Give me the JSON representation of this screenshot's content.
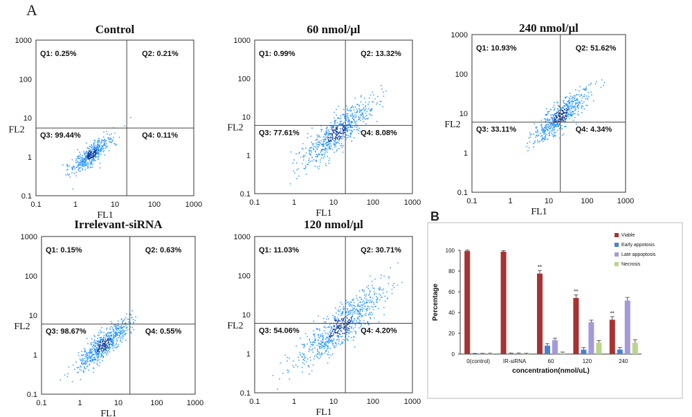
{
  "panel_a_label": "A",
  "panel_b_label": "B",
  "colors": {
    "dot": "#1e90ff",
    "dot_dense": "#0a3d9e",
    "quadrant_line": "#444444",
    "viable": "#a83232",
    "early": "#4a7fd6",
    "late": "#a49ad8",
    "necrosis": "#b8d68a"
  },
  "chart_data": [
    {
      "type": "scatter",
      "title": "Control",
      "xlabel": "FL1",
      "ylabel": "FL2",
      "x_scale": "log",
      "y_scale": "log",
      "xlim": [
        0.1,
        1000
      ],
      "ylim": [
        0.1,
        1000
      ],
      "x_ticks": [
        "0.1",
        "1",
        "10",
        "100",
        "1000"
      ],
      "y_ticks": [
        "0.1",
        "1",
        "10",
        "100",
        "1000"
      ],
      "gate": {
        "x": 20,
        "y": 5.5
      },
      "quadrants": [
        "Q1: 0.25%",
        "Q2: 0.21%",
        "Q3: 99.44%",
        "Q4: 0.11%"
      ],
      "cluster": {
        "center": [
          2.5,
          1.2
        ],
        "spread": 0.22,
        "count": 460
      }
    },
    {
      "type": "scatter",
      "title": "60 nmol/μl",
      "xlabel": "FL1",
      "ylabel": "FL2",
      "x_scale": "log",
      "y_scale": "log",
      "xlim": [
        0.1,
        1000
      ],
      "ylim": [
        0.1,
        1000
      ],
      "x_ticks": [
        "0.1",
        "1",
        "10",
        "100",
        "1000"
      ],
      "y_ticks": [
        "0.1",
        "1",
        "10",
        "100",
        "1000"
      ],
      "gate": {
        "x": 20,
        "y": 6
      },
      "quadrants": [
        "Q1: 0.99%",
        "Q2: 13.32%",
        "Q3: 77.61%",
        "Q4: 8.08%"
      ],
      "cluster": {
        "center": [
          12,
          4
        ],
        "spread": 0.38,
        "count": 620
      }
    },
    {
      "type": "scatter",
      "title": "240 nmol/μl",
      "xlabel": "FL1",
      "ylabel": "FL2",
      "x_scale": "log",
      "y_scale": "log",
      "xlim": [
        0.1,
        1000
      ],
      "ylim": [
        0.1,
        1000
      ],
      "x_ticks": [
        "0.1",
        "1",
        "10",
        "100",
        "1000"
      ],
      "y_ticks": [
        "0.1",
        "1",
        "10",
        "100",
        "1000"
      ],
      "gate": {
        "x": 20,
        "y": 6
      },
      "quadrants": [
        "Q1: 10.93%",
        "Q2: 51.62%",
        "Q3: 33.11%",
        "Q4: 4.34%"
      ],
      "cluster": {
        "center": [
          20,
          9
        ],
        "spread": 0.3,
        "count": 560
      }
    },
    {
      "type": "scatter",
      "title": "Irrelevant-siRNA",
      "xlabel": "FL1",
      "ylabel": "FL2",
      "x_scale": "log",
      "y_scale": "log",
      "xlim": [
        0.1,
        1000
      ],
      "ylim": [
        0.1,
        1000
      ],
      "x_ticks": [
        "0.1",
        "1",
        "10",
        "100",
        "1000"
      ],
      "y_ticks": [
        "0.1",
        "1",
        "10",
        "100",
        "1000"
      ],
      "gate": {
        "x": 20,
        "y": 6
      },
      "quadrants": [
        "Q1: 0.15%",
        "Q2: 0.63%",
        "Q3: 98.67%",
        "Q4: 0.55%"
      ],
      "cluster": {
        "center": [
          4,
          1.8
        ],
        "spread": 0.28,
        "count": 620
      }
    },
    {
      "type": "scatter",
      "title": "120 nmol/μl",
      "xlabel": "FL1",
      "ylabel": "FL2",
      "x_scale": "log",
      "y_scale": "log",
      "xlim": [
        0.1,
        1000
      ],
      "ylim": [
        0.1,
        1000
      ],
      "x_ticks": [
        "0.1",
        "1",
        "10",
        "100",
        "1000"
      ],
      "y_ticks": [
        "0.1",
        "1",
        "10",
        "100",
        "1000"
      ],
      "gate": {
        "x": 20,
        "y": 6
      },
      "quadrants": [
        "Q1: 11.03%",
        "Q2: 30.71%",
        "Q3: 54.06%",
        "Q4: 4.20%"
      ],
      "cluster": {
        "center": [
          15,
          5
        ],
        "spread": 0.45,
        "count": 720
      }
    },
    {
      "type": "bar",
      "title": "",
      "xlabel": "concentration(nmol/uL)",
      "ylabel": "Percentage",
      "ylim": [
        0,
        100
      ],
      "y_ticks": [
        "0",
        "20",
        "40",
        "60",
        "80",
        "100"
      ],
      "categories": [
        "0(control)",
        "IR-siRNA",
        "60",
        "120",
        "240"
      ],
      "series": [
        {
          "name": "Viable",
          "values": [
            99.4,
            98.7,
            77.6,
            54.1,
            33.1
          ],
          "errors": [
            1,
            1,
            3,
            3,
            3
          ]
        },
        {
          "name": "Early appotosis",
          "values": [
            0.1,
            0.5,
            8.1,
            4.2,
            4.3
          ],
          "errors": [
            0.5,
            0.5,
            2,
            2,
            2
          ]
        },
        {
          "name": "Late appoptosis",
          "values": [
            0.2,
            0.6,
            13.3,
            30.7,
            51.6
          ],
          "errors": [
            0.5,
            0.5,
            2,
            2,
            3
          ]
        },
        {
          "name": "Necrosis",
          "values": [
            0.3,
            0.2,
            1.0,
            11.0,
            10.9
          ],
          "errors": [
            0.5,
            0.5,
            1,
            2,
            3
          ]
        }
      ],
      "significance": [
        {
          "category": 2,
          "label": "**"
        },
        {
          "category": 3,
          "label": "**"
        },
        {
          "category": 4,
          "label": "**"
        }
      ],
      "legend_position": "top-right"
    }
  ]
}
